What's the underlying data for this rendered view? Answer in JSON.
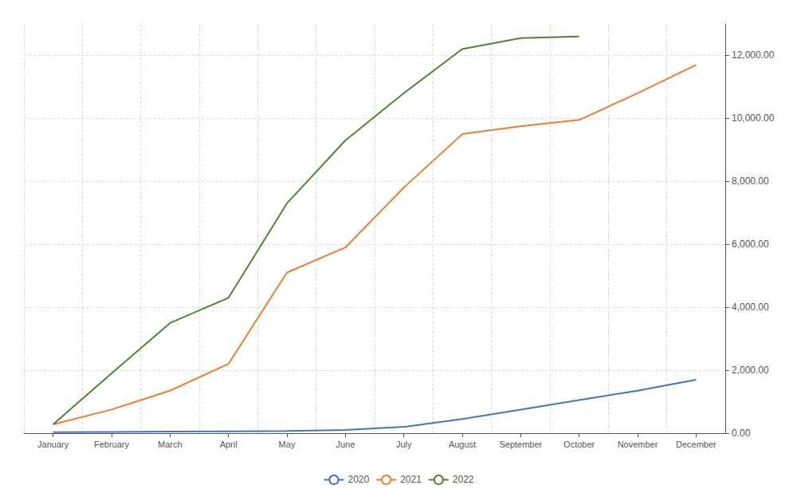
{
  "chart_data": {
    "type": "line",
    "categories": [
      "January",
      "February",
      "March",
      "April",
      "May",
      "June",
      "July",
      "August",
      "September",
      "October",
      "November",
      "December"
    ],
    "series": [
      {
        "name": "2020",
        "color": "#4472c4",
        "values": [
          30,
          40,
          50,
          60,
          70,
          100,
          200,
          450,
          750,
          1050,
          1350,
          1700
        ]
      },
      {
        "name": "2021",
        "color": "#ed7d31",
        "values": [
          280,
          750,
          1350,
          2200,
          5100,
          5900,
          7800,
          9500,
          9750,
          9950,
          10800,
          11700
        ]
      },
      {
        "name": "2022",
        "color": "#548235",
        "values": [
          280,
          1900,
          3500,
          4300,
          7300,
          9300,
          10800,
          12200,
          12550,
          12600,
          null,
          null
        ]
      }
    ],
    "ylim": [
      0,
      13000
    ],
    "yticks": [
      {
        "value": 0,
        "label": "0.00"
      },
      {
        "value": 2000,
        "label": "2,000.00"
      },
      {
        "value": 4000,
        "label": "4,000.00"
      },
      {
        "value": 6000,
        "label": "6,000.00"
      },
      {
        "value": 8000,
        "label": "8,000.00"
      },
      {
        "value": 10000,
        "label": "10,000.00"
      },
      {
        "value": 12000,
        "label": "12,000.00"
      }
    ],
    "grid": true,
    "legend": "bottom"
  }
}
